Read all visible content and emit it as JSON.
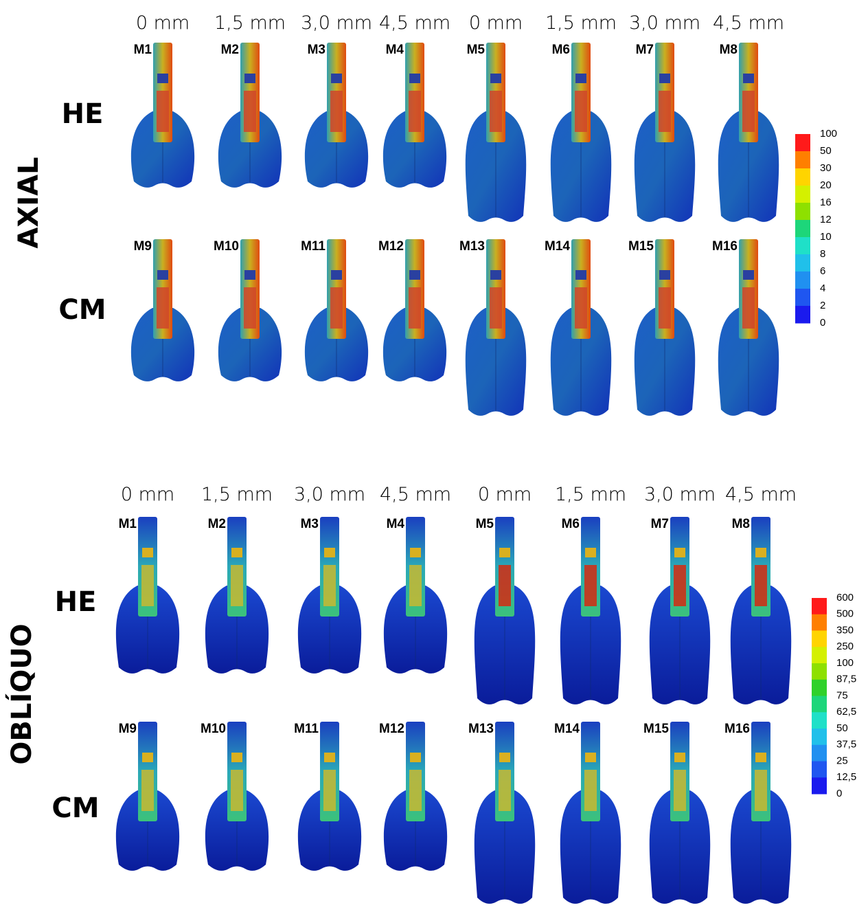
{
  "panels": [
    {
      "label": "AXIAL",
      "columns": [
        "0 mm",
        "1,5 mm",
        "3,0 mm",
        "4,5 mm",
        "0 mm",
        "1,5 mm",
        "3,0 mm",
        "4,5 mm"
      ],
      "rows": [
        {
          "label": "HE",
          "models": [
            "M1",
            "M2",
            "M3",
            "M4",
            "M5",
            "M6",
            "M7",
            "M8"
          ]
        },
        {
          "label": "CM",
          "models": [
            "M9",
            "M10",
            "M11",
            "M12",
            "M13",
            "M14",
            "M15",
            "M16"
          ]
        }
      ],
      "scale": [
        "100",
        "50",
        "30",
        "20",
        "16",
        "12",
        "10",
        "8",
        "6",
        "4",
        "2",
        "0"
      ]
    },
    {
      "label": "OBLÍQUO",
      "columns": [
        "0 mm",
        "1,5 mm",
        "3,0 mm",
        "4,5 mm",
        "0 mm",
        "1,5 mm",
        "3,0 mm",
        "4,5 mm"
      ],
      "rows": [
        {
          "label": "HE",
          "models": [
            "M1",
            "M2",
            "M3",
            "M4",
            "M5",
            "M6",
            "M7",
            "M8"
          ]
        },
        {
          "label": "CM",
          "models": [
            "M9",
            "M10",
            "M11",
            "M12",
            "M13",
            "M14",
            "M15",
            "M16"
          ]
        }
      ],
      "scale": [
        "600",
        "500",
        "350",
        "250",
        "100",
        "87,5",
        "75",
        "62,5",
        "50",
        "37,5",
        "25",
        "12,5",
        "0"
      ]
    }
  ]
}
